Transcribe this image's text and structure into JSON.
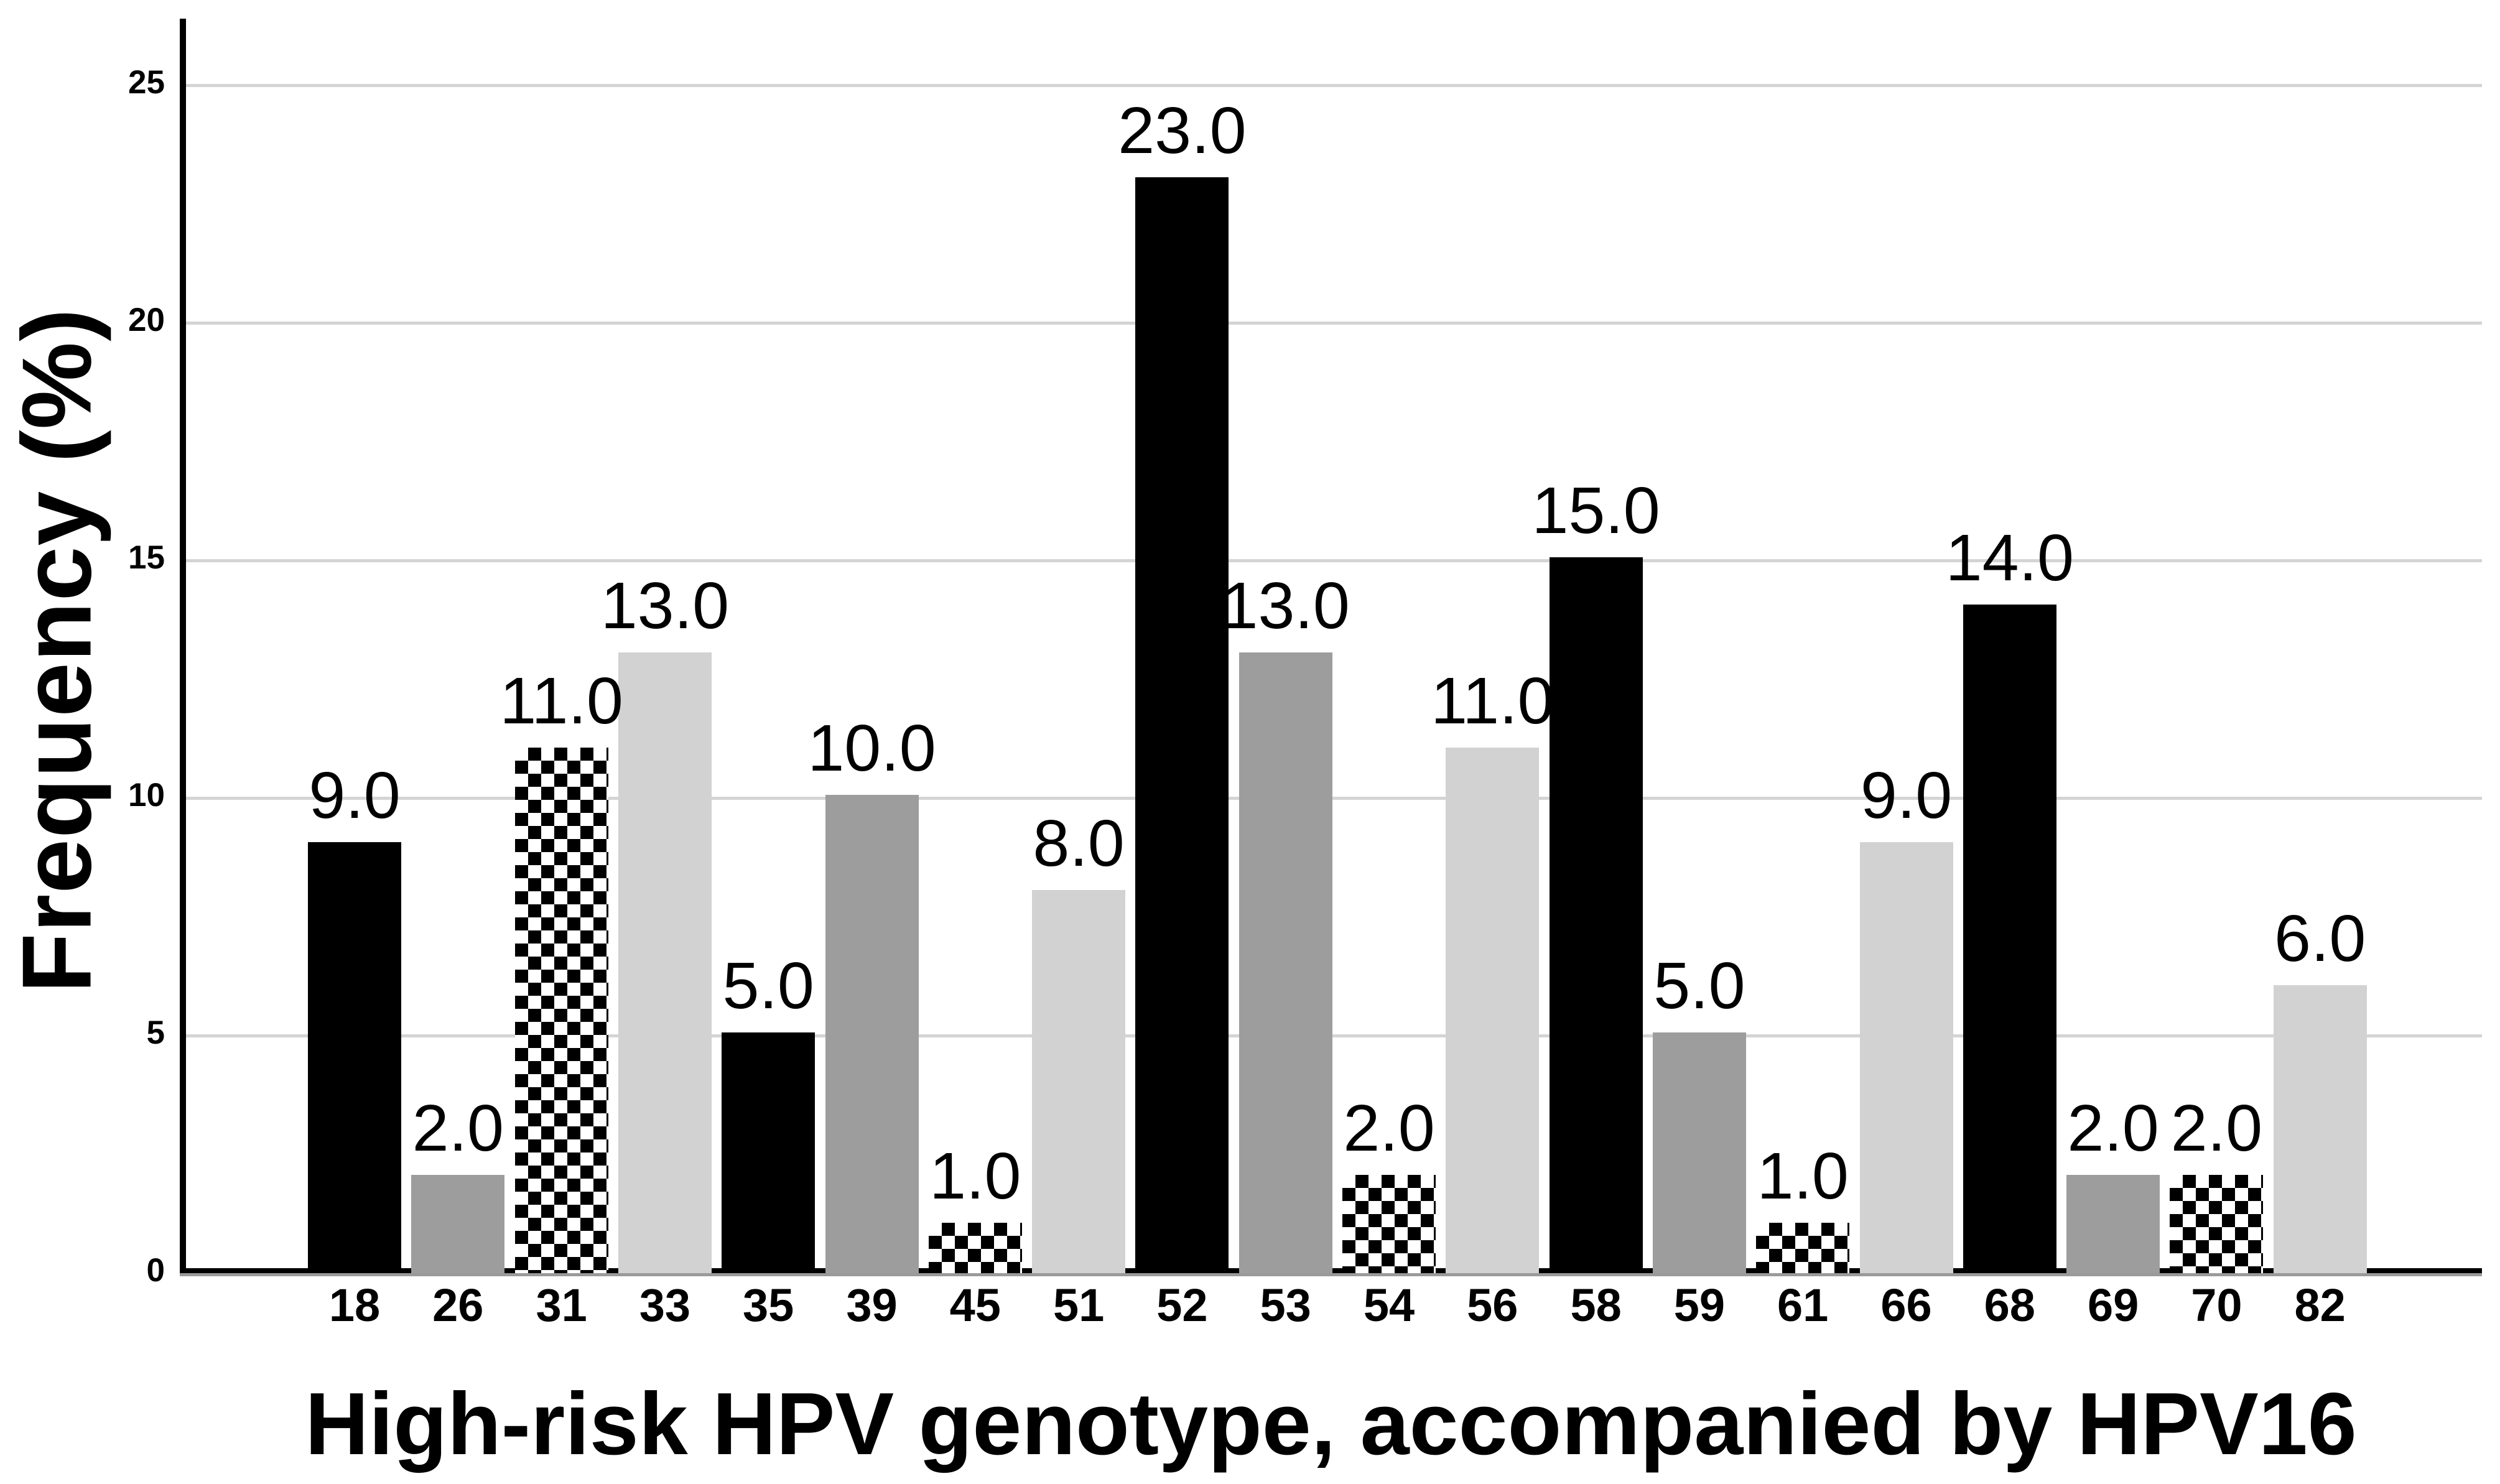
{
  "figure": {
    "y_axis_title": "Frequency (%)",
    "x_axis_title": "High-risk HPV genotype, accompanied by HPV16"
  },
  "chart_data": {
    "type": "bar",
    "title": "",
    "xlabel": "High-risk HPV genotype, accompanied by HPV16",
    "ylabel": "Frequency (%)",
    "categories": [
      "18",
      "26",
      "31",
      "33",
      "35",
      "39",
      "45",
      "51",
      "52",
      "53",
      "54",
      "56",
      "58",
      "59",
      "61",
      "66",
      "68",
      "69",
      "70",
      "82"
    ],
    "values": [
      9.0,
      2.0,
      11.0,
      13.0,
      5.0,
      10.0,
      1.0,
      8.0,
      23.0,
      13.0,
      2.0,
      11.0,
      15.0,
      5.0,
      1.0,
      9.0,
      14.0,
      2.0,
      2.0,
      6.0
    ],
    "data_labels": [
      "9.0",
      "2.0",
      "11.0",
      "13.0",
      "5.0",
      "10.0",
      "1.0",
      "8.0",
      "23.0",
      "13.0",
      "2.0",
      "11.0",
      "15.0",
      "5.0",
      "1.0",
      "9.0",
      "14.0",
      "2.0",
      "2.0",
      "6.0"
    ],
    "bar_styles": [
      "solid-black",
      "dark-gray",
      "checkerboard",
      "light-gray",
      "solid-black",
      "dark-gray",
      "checkerboard",
      "light-gray",
      "solid-black",
      "dark-gray",
      "checkerboard",
      "light-gray",
      "solid-black",
      "dark-gray",
      "checkerboard",
      "light-gray",
      "solid-black",
      "dark-gray",
      "checkerboard",
      "light-gray"
    ],
    "y_ticks": [
      "0",
      "5",
      "10",
      "15",
      "20",
      "25"
    ],
    "ylim": [
      0,
      26.4
    ],
    "grid": "horizontal-only",
    "legend": "none",
    "data_label_format": "one-decimal"
  },
  "colors": {
    "bar_black": "#000000",
    "bar_dark_gray": "#9d9d9d",
    "bar_light_gray": "#d2d2d2",
    "checker_black": "#000000",
    "checker_white": "#ffffff",
    "gridline": "#d4d4d4",
    "y_axis_line": "#000000",
    "x_axis_line_black": "#000000",
    "x_axis_line_gray": "#9a9a9a",
    "text": "#000000",
    "background": "#ffffff"
  }
}
